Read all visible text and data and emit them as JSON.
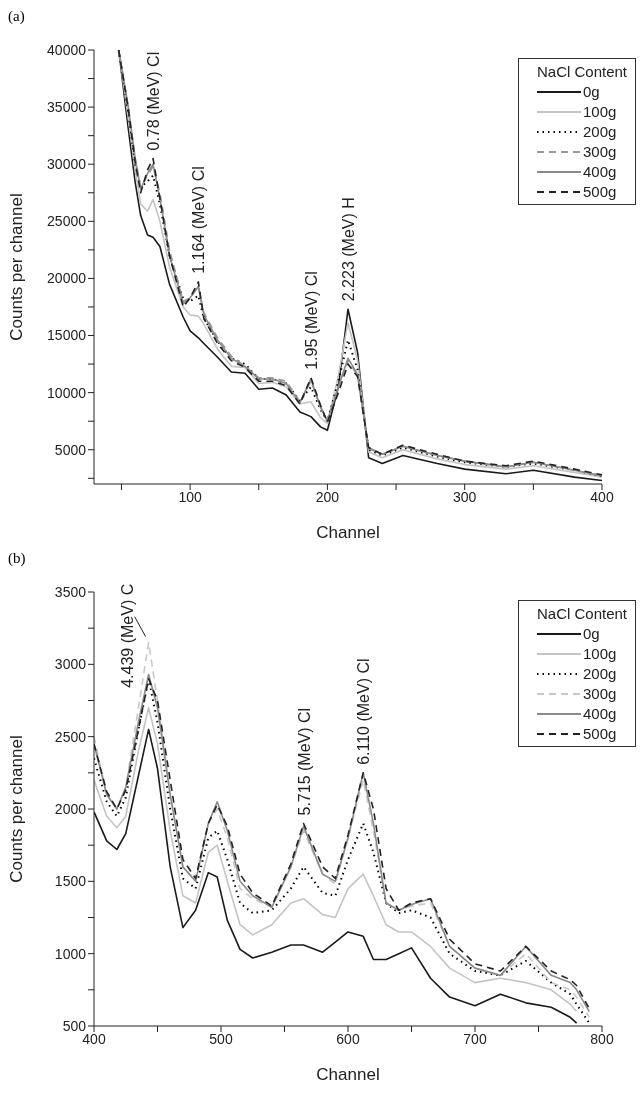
{
  "chart_data": [
    {
      "type": "line",
      "title": "(a)",
      "xlabel": "Channel",
      "ylabel": "Counts per channel",
      "legend_title": "NaCl Content",
      "legend": "top right",
      "grid": false,
      "marker": "none",
      "xlim": [
        30,
        400
      ],
      "xticks": [
        {
          "value": 50,
          "label": null
        },
        100,
        {
          "value": 150,
          "label": null
        },
        200,
        {
          "value": 250,
          "label": null
        },
        300,
        {
          "value": 350,
          "label": null
        },
        400
      ],
      "ylim": [
        2000,
        40000
      ],
      "yticks": [
        {
          "value": 2500,
          "label": null
        },
        5000,
        {
          "value": 7500,
          "label": null
        },
        10000,
        {
          "value": 12500,
          "label": null
        },
        15000,
        {
          "value": 17500,
          "label": null
        },
        20000,
        {
          "value": 22500,
          "label": null
        },
        25000,
        {
          "value": 27500,
          "label": null
        },
        30000,
        {
          "value": 32500,
          "label": null
        },
        35000,
        {
          "value": 37500,
          "label": null
        },
        40000
      ],
      "x": [
        48,
        55,
        60,
        64,
        69,
        73,
        78,
        85,
        95,
        100,
        106,
        110,
        120,
        130,
        140,
        150,
        160,
        170,
        180,
        188,
        195,
        200,
        208,
        215,
        222,
        230,
        240,
        255,
        280,
        300,
        330,
        350,
        380,
        400
      ],
      "series": [
        {
          "name": "0g",
          "color": "#1a1a1a",
          "line_style": "solid",
          "values": [
            40000,
            33100,
            28400,
            25500,
            23800,
            23600,
            22800,
            19500,
            16600,
            15400,
            14800,
            14300,
            13100,
            11800,
            11700,
            10300,
            10400,
            9800,
            8300,
            7900,
            7000,
            6700,
            10500,
            17300,
            13500,
            4300,
            3800,
            4500,
            3800,
            3300,
            2900,
            3200,
            2600,
            2300
          ]
        },
        {
          "name": "100g",
          "color": "#c4c4c4",
          "line_style": "solid",
          "values": [
            40000,
            34000,
            29500,
            26500,
            25900,
            26900,
            25000,
            21000,
            17500,
            16800,
            16700,
            16000,
            13800,
            12300,
            12200,
            10800,
            10900,
            10500,
            9000,
            9200,
            7800,
            7300,
            11500,
            16100,
            12800,
            4800,
            4300,
            5000,
            4200,
            3700,
            3300,
            3600,
            3000,
            2600
          ]
        },
        {
          "name": "200g",
          "color": "#000000",
          "line_style": "dotted",
          "values": [
            40000,
            34500,
            30000,
            28000,
            28500,
            29000,
            26500,
            22000,
            18200,
            18000,
            18500,
            16500,
            14500,
            13000,
            12500,
            11200,
            11200,
            10800,
            9300,
            10500,
            8500,
            7500,
            11000,
            14600,
            12000,
            5000,
            4500,
            5200,
            4400,
            3900,
            3500,
            3800,
            3200,
            2700
          ]
        },
        {
          "name": "300g",
          "color": "#9a9a9a",
          "line_style": "dashed",
          "values": [
            40000,
            35000,
            30500,
            28000,
            29000,
            29800,
            27500,
            22500,
            18000,
            18300,
            19300,
            17000,
            14800,
            13200,
            12300,
            11300,
            11300,
            11000,
            9200,
            11000,
            8800,
            7600,
            10500,
            12800,
            11500,
            5200,
            4600,
            5300,
            4500,
            4000,
            3500,
            3900,
            3200,
            2700
          ]
        },
        {
          "name": "400g",
          "color": "#8a8a8a",
          "line_style": "solid",
          "values": [
            40000,
            35000,
            30500,
            27800,
            29200,
            30000,
            27000,
            22000,
            17800,
            18300,
            19300,
            16800,
            14600,
            13000,
            12300,
            11200,
            11200,
            10800,
            9100,
            11200,
            8700,
            7500,
            10500,
            13000,
            11600,
            5100,
            4600,
            5300,
            4500,
            4000,
            3500,
            3900,
            3200,
            2700
          ]
        },
        {
          "name": "500g",
          "color": "#222222",
          "line_style": "dashed",
          "values": [
            40000,
            34800,
            30200,
            27500,
            29500,
            30500,
            27000,
            22000,
            17500,
            18300,
            19700,
            16500,
            14300,
            12800,
            12200,
            11000,
            11000,
            10600,
            9000,
            11300,
            8900,
            7400,
            10000,
            12500,
            11400,
            5200,
            4600,
            5400,
            4600,
            4000,
            3600,
            4000,
            3300,
            2800
          ]
        }
      ],
      "annotations": [
        {
          "text": "0.78 (MeV) Cl",
          "x": 73,
          "y": 30500
        },
        {
          "text": "1.164 (MeV) Cl",
          "x": 106,
          "y": 19700
        },
        {
          "text": "1.95 (MeV) Cl",
          "x": 188,
          "y": 11300
        },
        {
          "text": "2.223 (MeV) H",
          "x": 215,
          "y": 17300
        }
      ]
    },
    {
      "type": "line",
      "title": "(b)",
      "xlabel": "Channel",
      "ylabel": "Counts per channel",
      "legend_title": "NaCl Content",
      "legend": "top right",
      "grid": false,
      "marker": "none",
      "xlim": [
        400,
        800
      ],
      "xticks": [
        400,
        {
          "value": 450,
          "label": null
        },
        500,
        {
          "value": 550,
          "label": null
        },
        600,
        {
          "value": 650,
          "label": null
        },
        700,
        {
          "value": 750,
          "label": null
        },
        800
      ],
      "ylim": [
        500,
        3500
      ],
      "yticks": [
        500,
        {
          "value": 750,
          "label": null
        },
        1000,
        {
          "value": 1250,
          "label": null
        },
        1500,
        {
          "value": 1750,
          "label": null
        },
        2000,
        {
          "value": 2250,
          "label": null
        },
        2500,
        {
          "value": 2750,
          "label": null
        },
        3000,
        {
          "value": 3250,
          "label": null
        },
        3500
      ],
      "x": [
        400,
        410,
        418,
        425,
        435,
        443,
        450,
        460,
        470,
        480,
        490,
        497,
        505,
        515,
        525,
        540,
        555,
        565,
        580,
        590,
        600,
        612,
        620,
        630,
        640,
        650,
        665,
        680,
        700,
        720,
        740,
        760,
        775,
        780,
        790
      ],
      "series": [
        {
          "name": "0g",
          "color": "#1a1a1a",
          "line_style": "solid",
          "values": [
            1980,
            1780,
            1720,
            1830,
            2230,
            2550,
            2280,
            1600,
            1180,
            1300,
            1560,
            1530,
            1230,
            1030,
            970,
            1010,
            1060,
            1060,
            1010,
            1080,
            1150,
            1120,
            960,
            960,
            1000,
            1040,
            830,
            700,
            640,
            720,
            660,
            630,
            560,
            520,
            null
          ]
        },
        {
          "name": "100g",
          "color": "#c4c4c4",
          "line_style": "solid",
          "values": [
            2200,
            1950,
            1870,
            1950,
            2400,
            2700,
            2450,
            1850,
            1400,
            1350,
            1700,
            1750,
            1500,
            1200,
            1130,
            1200,
            1350,
            1380,
            1270,
            1250,
            1450,
            1550,
            1400,
            1200,
            1150,
            1150,
            1050,
            900,
            800,
            830,
            800,
            750,
            650,
            600,
            null
          ]
        },
        {
          "name": "200g",
          "color": "#000000",
          "line_style": "dotted",
          "values": [
            2350,
            2050,
            1950,
            2080,
            2550,
            2900,
            2600,
            2000,
            1520,
            1450,
            1800,
            1850,
            1650,
            1350,
            1280,
            1300,
            1450,
            1600,
            1420,
            1400,
            1650,
            1900,
            1700,
            1350,
            1280,
            1300,
            1250,
            1000,
            880,
            850,
            950,
            800,
            720,
            650,
            520
          ]
        },
        {
          "name": "300g",
          "color": "#c8c8c8",
          "line_style": "dashed",
          "values": [
            2500,
            2100,
            2000,
            2150,
            2700,
            3150,
            2750,
            2100,
            1600,
            1500,
            1900,
            2000,
            1800,
            1450,
            1380,
            1320,
            1600,
            1850,
            1550,
            1480,
            1800,
            2200,
            1850,
            1350,
            1300,
            1330,
            1350,
            1050,
            900,
            850,
            1000,
            800,
            750,
            700,
            560
          ]
        },
        {
          "name": "400g",
          "color": "#8a8a8a",
          "line_style": "solid",
          "values": [
            2450,
            2100,
            2000,
            2150,
            2600,
            2930,
            2700,
            2100,
            1600,
            1500,
            1900,
            2050,
            1850,
            1500,
            1400,
            1320,
            1600,
            1880,
            1550,
            1500,
            1800,
            2250,
            1900,
            1350,
            1300,
            1340,
            1380,
            1050,
            900,
            850,
            1050,
            850,
            800,
            750,
            600
          ]
        },
        {
          "name": "500g",
          "color": "#222222",
          "line_style": "dashed",
          "values": [
            2450,
            2120,
            2000,
            2130,
            2550,
            2900,
            2750,
            2200,
            1650,
            1520,
            1900,
            2030,
            1880,
            1550,
            1420,
            1330,
            1620,
            1900,
            1600,
            1520,
            1820,
            2250,
            2000,
            1450,
            1300,
            1350,
            1380,
            1100,
            930,
            880,
            1050,
            880,
            820,
            780,
            620
          ]
        }
      ],
      "annotations": [
        {
          "text": "4.439 (MeV) C",
          "x": 443,
          "y": 3150
        },
        {
          "text": "5.715 (MeV) Cl",
          "x": 565,
          "y": 1900
        },
        {
          "text": "6.110 (MeV) Cl",
          "x": 612,
          "y": 2250
        }
      ]
    }
  ]
}
